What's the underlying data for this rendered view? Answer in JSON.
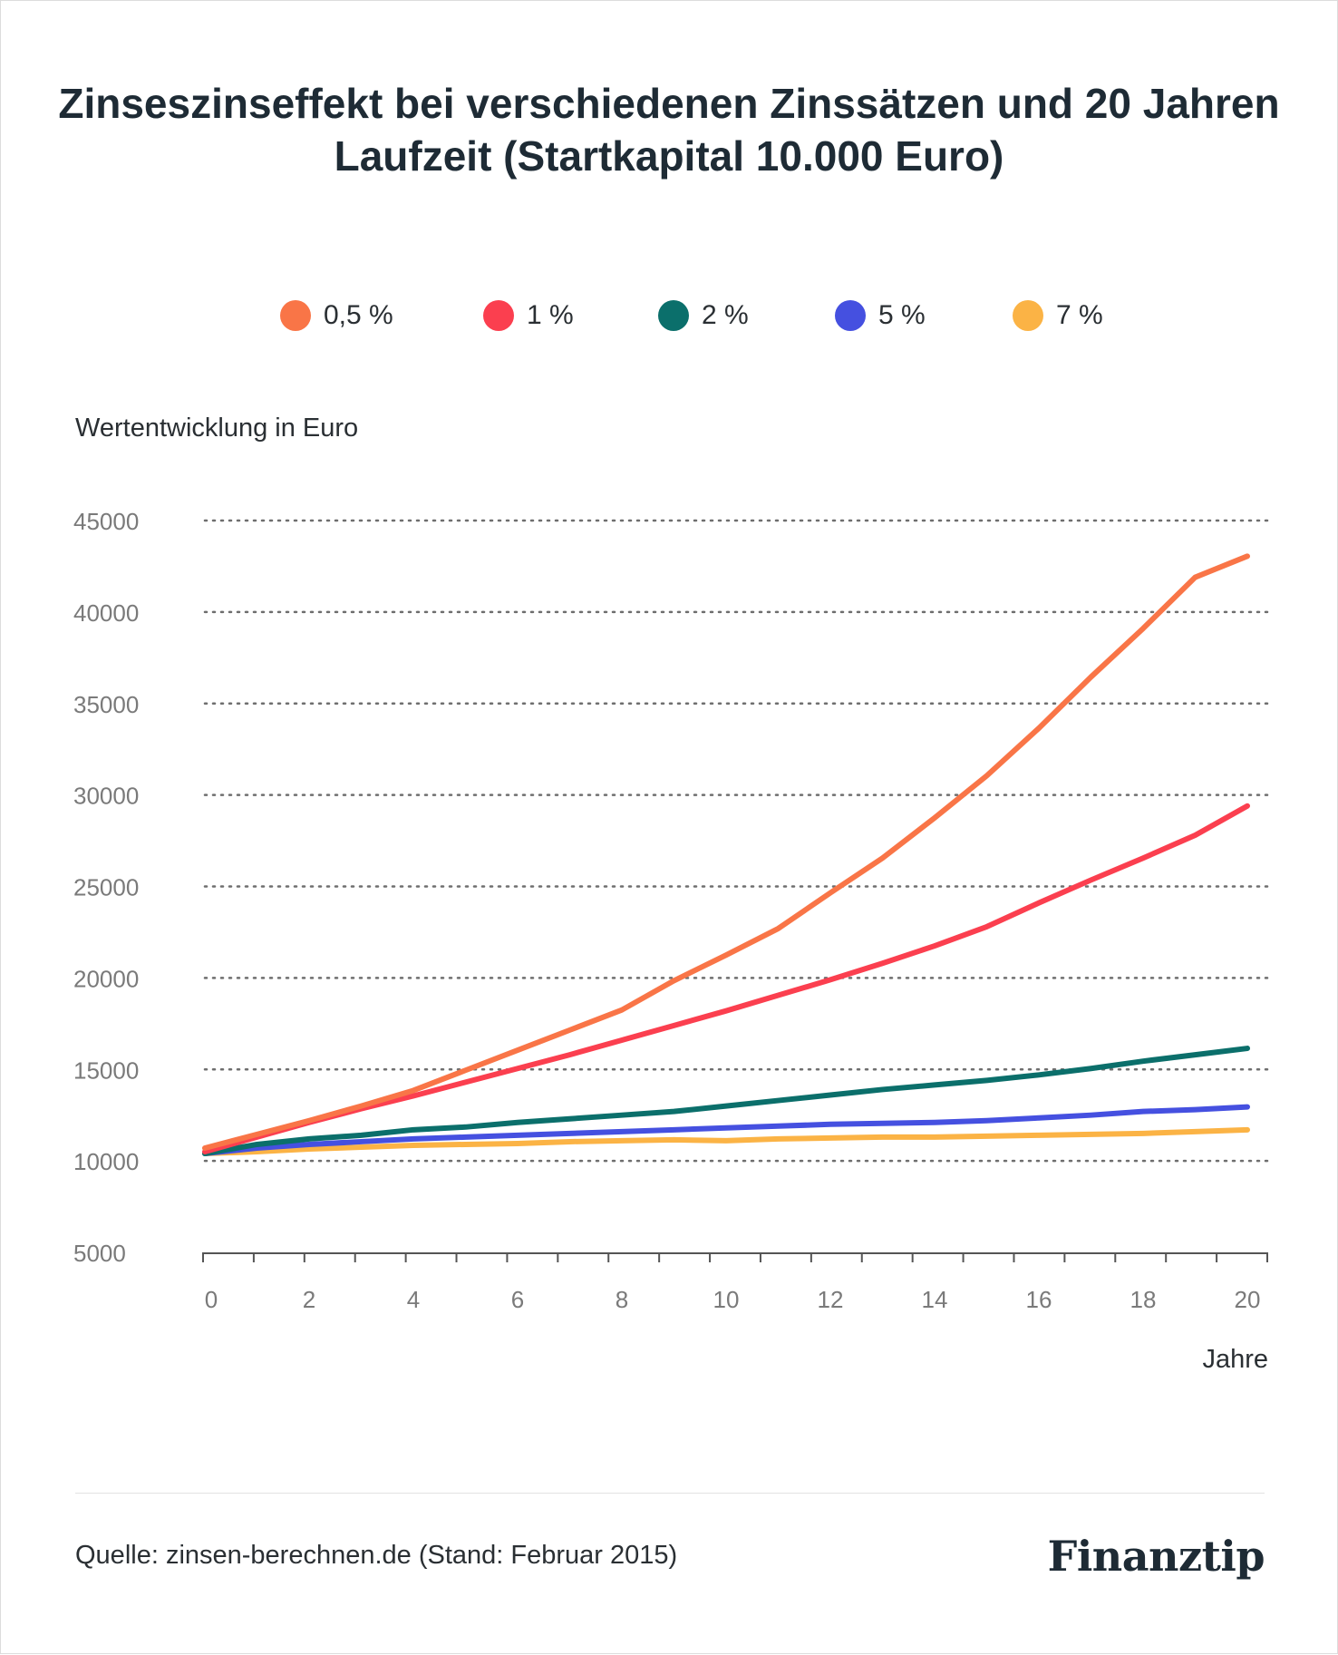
{
  "title": "Zinseszinseffekt bei verschiedenen Zinssätzen und 20 Jahren Laufzeit (Startkapital 10.000 Euro)",
  "legend": [
    {
      "label": "0,5 %",
      "color": "#f97547"
    },
    {
      "label": "1 %",
      "color": "#fb3f4f"
    },
    {
      "label": "2 %",
      "color": "#0b6f6b"
    },
    {
      "label": "5 %",
      "color": "#4550e0"
    },
    {
      "label": "7 %",
      "color": "#fbb345"
    }
  ],
  "source": "Quelle: zinsen-berechnen.de (Stand: Februar 2015)",
  "brand": "Finanztip",
  "chart_data": {
    "type": "line",
    "title": "Zinseszinseffekt bei verschiedenen Zinssätzen und 20 Jahren Laufzeit (Startkapital 10.000 Euro)",
    "ylabel": "Wertentwicklung in Euro",
    "xlabel": "Jahre",
    "ylim": [
      5000,
      45000
    ],
    "yticks": [
      5000,
      10000,
      15000,
      20000,
      25000,
      30000,
      35000,
      40000,
      45000
    ],
    "xlim": [
      0,
      20
    ],
    "xticks": [
      0,
      2,
      4,
      6,
      8,
      10,
      12,
      14,
      16,
      18,
      20
    ],
    "grid": "horizontal dotted",
    "legend_position": "top",
    "x": [
      0,
      1,
      2,
      3,
      4,
      5,
      6,
      7,
      8,
      9,
      10,
      11,
      12,
      13,
      14,
      15,
      16,
      17,
      18,
      19,
      20
    ],
    "series": [
      {
        "name": "0,5 %",
        "color": "#f97547",
        "values": [
          10700,
          11450,
          12200,
          13000,
          13850,
          14950,
          16050,
          17150,
          18250,
          19850,
          21250,
          22700,
          24650,
          26550,
          28750,
          31050,
          33650,
          36450,
          39100,
          41900,
          43050
        ]
      },
      {
        "name": "1 %",
        "color": "#fb3f4f",
        "values": [
          10500,
          11300,
          12100,
          12850,
          13550,
          14300,
          15050,
          15800,
          16600,
          17400,
          18200,
          19050,
          19900,
          20800,
          21750,
          22800,
          24100,
          25350,
          26550,
          27800,
          29400
        ]
      },
      {
        "name": "2 %",
        "color": "#0b6f6b",
        "values": [
          10400,
          10900,
          11200,
          11400,
          11700,
          11850,
          12100,
          12300,
          12500,
          12700,
          13000,
          13300,
          13600,
          13900,
          14150,
          14400,
          14700,
          15050,
          15450,
          15800,
          16150
        ]
      },
      {
        "name": "5 %",
        "color": "#4550e0",
        "values": [
          10400,
          10700,
          10900,
          11050,
          11200,
          11300,
          11400,
          11500,
          11600,
          11700,
          11800,
          11900,
          12000,
          12050,
          12100,
          12200,
          12350,
          12500,
          12700,
          12800,
          12950
        ]
      },
      {
        "name": "7 %",
        "color": "#fbb345",
        "values": [
          10400,
          10500,
          10650,
          10750,
          10850,
          10900,
          10950,
          11050,
          11100,
          11150,
          11100,
          11200,
          11250,
          11300,
          11300,
          11350,
          11400,
          11450,
          11500,
          11600,
          11700
        ]
      }
    ]
  }
}
